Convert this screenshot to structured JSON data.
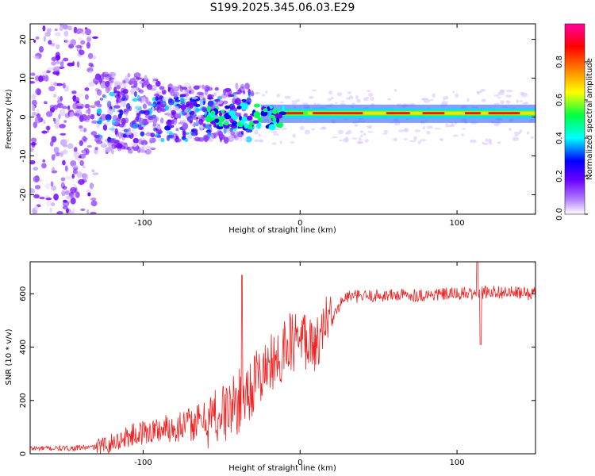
{
  "title": "S199.2025.345.06.03.E29",
  "chart_data": [
    {
      "type": "heatmap",
      "xlabel": "Height of straight line (km)",
      "ylabel": "Frequency (Hz)",
      "xlim": [
        -172,
        150
      ],
      "ylim": [
        -25,
        24
      ],
      "xticks": [
        -100,
        0,
        100
      ],
      "yticks": [
        -20,
        -10,
        0,
        10,
        20
      ],
      "ridge": {
        "description_values": "narrow band near 0-2 Hz for heights above -20 km; diffuse noise below",
        "segments": [
          {
            "x": [
              -20,
              150
            ],
            "freq": 1.0
          }
        ]
      },
      "colorbar": {
        "label": "Normalized spectral amplitude",
        "range": [
          0,
          1
        ],
        "ticks": [
          "0.0",
          "0.2",
          "0.4",
          "0.6",
          "0.8"
        ],
        "colors": [
          "#ffffff",
          "#7a00ff",
          "#0000ff",
          "#00ffff",
          "#00ff00",
          "#ffff00",
          "#ff8000",
          "#ff0000",
          "#ff00a0"
        ]
      }
    },
    {
      "type": "line",
      "xlabel": "Height of straight line (km)",
      "ylabel": "SNR (10 * v/v)",
      "xlim": [
        -172,
        150
      ],
      "ylim": [
        0,
        720
      ],
      "xticks": [
        -100,
        0,
        100
      ],
      "yticks": [
        0,
        200,
        400,
        600
      ],
      "line_color": "#ee2222",
      "series": [
        {
          "name": "SNR",
          "x": [
            -172,
            -150,
            -130,
            -120,
            -110,
            -100,
            -90,
            -80,
            -70,
            -60,
            -50,
            -40,
            -30,
            -20,
            -10,
            0,
            10,
            20,
            25,
            30,
            40,
            60,
            80,
            100,
            110,
            115,
            120,
            130,
            150
          ],
          "values": [
            20,
            20,
            25,
            40,
            65,
            80,
            90,
            100,
            110,
            130,
            150,
            190,
            260,
            330,
            400,
            430,
            440,
            490,
            560,
            590,
            590,
            595,
            595,
            600,
            600,
            600,
            610,
            605,
            600
          ]
        }
      ],
      "annotations": [
        {
          "x": -37,
          "y": 670,
          "text": "spike"
        },
        {
          "x": 113,
          "y": 720,
          "text": "spike"
        }
      ]
    }
  ]
}
